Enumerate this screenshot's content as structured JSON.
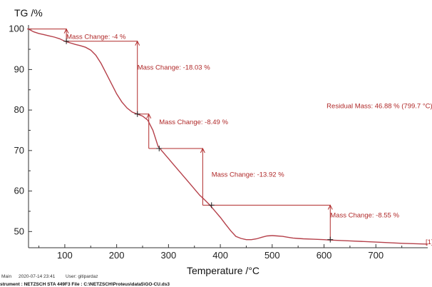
{
  "chart_data": {
    "type": "line",
    "ylabel": "TG /%",
    "xlabel": "Temperature /°C",
    "xlim": [
      30,
      800
    ],
    "ylim": [
      46,
      101
    ],
    "x_ticks": [
      100,
      200,
      300,
      400,
      500,
      600,
      700
    ],
    "y_ticks": [
      50,
      60,
      70,
      80,
      90,
      100
    ],
    "grid": false,
    "line_color": "#b5404a",
    "annotation_color": "#b02a2a",
    "series": [
      {
        "x": [
          30,
          40,
          50,
          60,
          70,
          80,
          90,
          100,
          110,
          120,
          130,
          140,
          150,
          160,
          170,
          180,
          190,
          200,
          210,
          220,
          230,
          240,
          250,
          260,
          270,
          280,
          290,
          300,
          310,
          320,
          330,
          340,
          350,
          360,
          370,
          380,
          390,
          400,
          410,
          420,
          430,
          440,
          450,
          460,
          470,
          480,
          490,
          500,
          510,
          520,
          530,
          540,
          550,
          560,
          580,
          600,
          610,
          650,
          700,
          750,
          800
        ],
        "y": [
          100,
          99.3,
          98.9,
          98.6,
          98.3,
          98.0,
          97.6,
          97.0,
          96.6,
          96.2,
          95.9,
          95.5,
          94.8,
          93.5,
          91.5,
          89.0,
          86.5,
          84.0,
          82.0,
          80.5,
          79.5,
          79.0,
          78.5,
          77.5,
          75.0,
          71.0,
          69.5,
          68.0,
          66.5,
          65.0,
          63.5,
          62.0,
          60.5,
          59.0,
          57.8,
          56.5,
          55.0,
          53.5,
          51.8,
          50.2,
          48.8,
          48.3,
          48.0,
          48.0,
          48.2,
          48.6,
          48.9,
          49.0,
          48.9,
          48.8,
          48.6,
          48.4,
          48.3,
          48.2,
          48.1,
          48.0,
          47.9,
          47.7,
          47.4,
          47.1,
          46.9
        ]
      }
    ],
    "annotations": [
      {
        "text": "Mass Change: -4 %",
        "x": 103,
        "y": 97.6
      },
      {
        "text": "Mass Change: -18.03 %",
        "x": 240,
        "y": 90.0
      },
      {
        "text": "Mass Change: -8.49 %",
        "x": 282,
        "y": 76.5
      },
      {
        "text": "Mass Change: -13.92 %",
        "x": 383,
        "y": 63.5
      },
      {
        "text": "Mass Change: -8.55 %",
        "x": 612,
        "y": 53.5
      },
      {
        "text": "Residual Mass: 46.88 % (799.7 °C)",
        "x": 605,
        "y": 80.5
      }
    ],
    "markers": [
      {
        "x": 103,
        "y": 97.0
      },
      {
        "x": 240,
        "y": 79.0
      },
      {
        "x": 282,
        "y": 70.5
      },
      {
        "x": 383,
        "y": 56.5
      },
      {
        "x": 612,
        "y": 48.0
      }
    ],
    "steps": [
      {
        "x": 103,
        "y_top": 100,
        "y_bottom": 97.0,
        "line_to": 240
      },
      {
        "x": 240,
        "y_top": 97.0,
        "y_bottom": 79.0,
        "line_to": 262
      },
      {
        "x": 262,
        "y_top": 79.0,
        "y_bottom": 70.5,
        "line_to": 366
      },
      {
        "x": 366,
        "y_top": 70.5,
        "y_bottom": 56.5,
        "line_to": 612
      },
      {
        "x": 612,
        "y_top": 56.5,
        "y_bottom": 48.0,
        "line_to": 612
      }
    ],
    "curve_id": "[1]"
  },
  "footer": {
    "main_label": "Main",
    "date": "2020-07-14 23:41",
    "user": "User: gitipardaz",
    "instrument": "strument : NETZSCH STA 449F3  File : C:\\NETZSCH\\Proteus\\data5\\GO-CU.ds3"
  }
}
